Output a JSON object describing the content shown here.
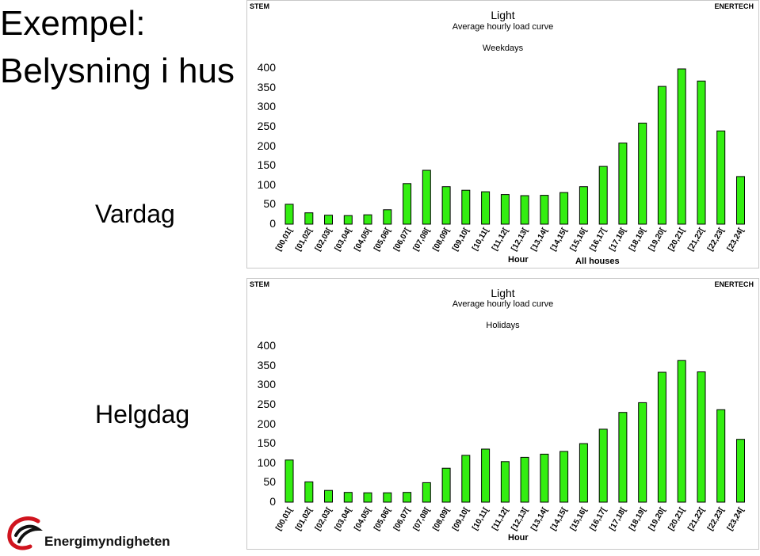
{
  "slide": {
    "title": "Exempel: Belysning i hus",
    "weekday_label": "Vardag",
    "holiday_label": "Helgdag"
  },
  "logo": {
    "text": "Energimyndigheten"
  },
  "colors": {
    "bar_fill": "#33ee11",
    "bar_stroke": "#000000",
    "logo_red": "#d0141e"
  },
  "chart_data": [
    {
      "type": "bar",
      "corner_left": "STEM",
      "corner_right": "ENERTECH",
      "title": "Light",
      "subtitle": "Average hourly load curve",
      "subtitle2": "Weekdays",
      "xlabel": "Hour",
      "extra_label": "All houses",
      "ylim": [
        0,
        400
      ],
      "yticks": [
        0,
        50,
        100,
        150,
        200,
        250,
        300,
        350,
        400
      ],
      "grid": false,
      "categories": [
        "[00,01[",
        "[01,02[",
        "[02,03[",
        "[03,04[",
        "[04,05[",
        "[05,06[",
        "[06,07[",
        "[07,08[",
        "[08,09[",
        "[09,10[",
        "[10,11[",
        "[11,12[",
        "[12,13[",
        "[13,14[",
        "[14,15[",
        "[15,16[",
        "[16,17[",
        "[17,18[",
        "[18,19[",
        "[19,20[",
        "[20,21[",
        "[21,22[",
        "[22,23[",
        "[23,24["
      ],
      "values": [
        51,
        29,
        23,
        22,
        24,
        37,
        104,
        138,
        96,
        87,
        83,
        76,
        73,
        74,
        81,
        96,
        148,
        208,
        259,
        353,
        398,
        367,
        239,
        122
      ]
    },
    {
      "type": "bar",
      "corner_left": "STEM",
      "corner_right": "ENERTECH",
      "title": "Light",
      "subtitle": "Average hourly load curve",
      "subtitle2": "Holidays",
      "xlabel": "Hour",
      "ylim": [
        0,
        400
      ],
      "yticks": [
        0,
        50,
        100,
        150,
        200,
        250,
        300,
        350,
        400
      ],
      "grid": false,
      "categories": [
        "[00,01[",
        "[01,02[",
        "[02,03[",
        "[03,04[",
        "[04,05[",
        "[05,06[",
        "[06,07[",
        "[07,08[",
        "[08,09[",
        "[09,10[",
        "[10,11[",
        "[11,12[",
        "[12,13[",
        "[13,14[",
        "[14,15[",
        "[15,16[",
        "[16,17[",
        "[17,18[",
        "[18,19[",
        "[19,20[",
        "[20,21[",
        "[21,22[",
        "[22,23[",
        "[23,24["
      ],
      "values": [
        108,
        52,
        30,
        25,
        24,
        24,
        25,
        50,
        87,
        120,
        136,
        104,
        115,
        123,
        130,
        150,
        187,
        230,
        255,
        333,
        363,
        334,
        237,
        161
      ]
    }
  ]
}
